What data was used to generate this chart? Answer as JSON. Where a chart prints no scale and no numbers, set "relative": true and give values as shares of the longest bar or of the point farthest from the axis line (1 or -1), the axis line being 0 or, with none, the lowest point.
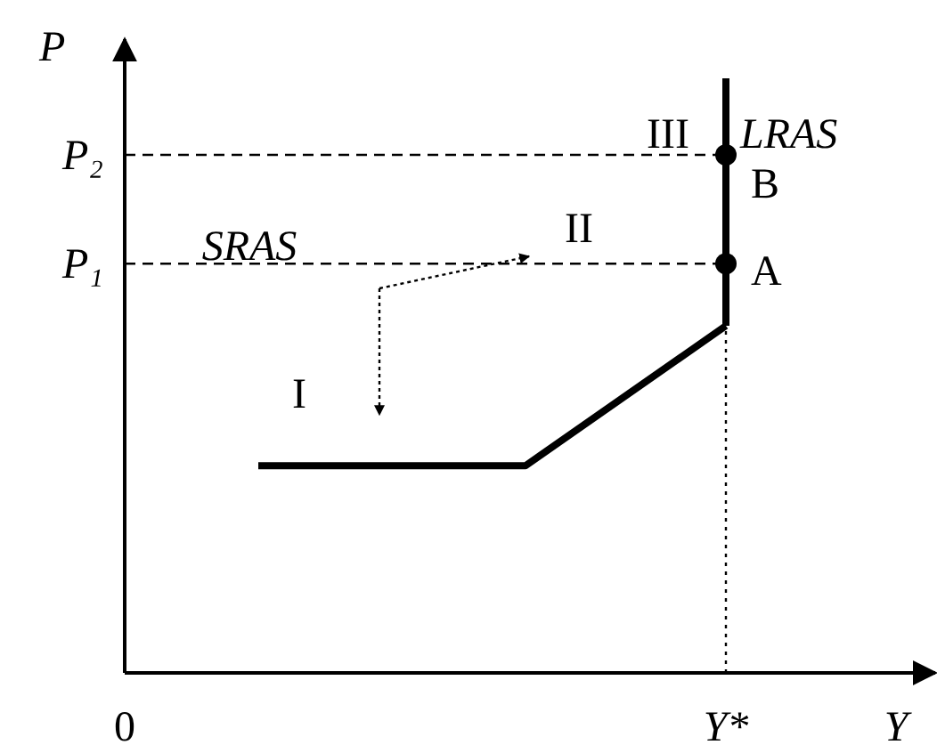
{
  "chart_data": {
    "type": "line",
    "relative": true,
    "xlabel": "Y",
    "ylabel": "P",
    "categories": [
      "0",
      null,
      null,
      null,
      null,
      null,
      null,
      null,
      null,
      "Y*"
    ],
    "series": [
      {
        "color": "#000000",
        "values": [
          null,
          null,
          0.4,
          null,
          null,
          null,
          0.4,
          null,
          null,
          0.67
        ],
        "marker": "none",
        "line_style": "solid"
      },
      {
        "type": "scatter",
        "color": "#000000",
        "x": [
          "Y*",
          "Y*"
        ],
        "values": [
          0.79,
          1
        ],
        "marker": "circle"
      }
    ],
    "ref_lines": [
      {
        "axis": "y",
        "value": 0.79,
        "label": "P₁",
        "line_style": "dashed",
        "color": "#000000"
      },
      {
        "axis": "y",
        "value": 1,
        "label": "P₂",
        "line_style": "dashed",
        "color": "#000000"
      },
      {
        "axis": "x",
        "value": "Y*",
        "label": "LRAS",
        "line_style": "solid",
        "color": "#000000"
      },
      {
        "axis": "x",
        "value": "Y*",
        "line_style": "dotted",
        "color": "#000000"
      }
    ],
    "annotations": [
      "SRAS",
      "I",
      "II",
      "III",
      {
        "text": "A",
        "x": "Y*",
        "y": 0.79
      },
      {
        "text": "B",
        "x": "Y*",
        "y": 1
      }
    ]
  }
}
